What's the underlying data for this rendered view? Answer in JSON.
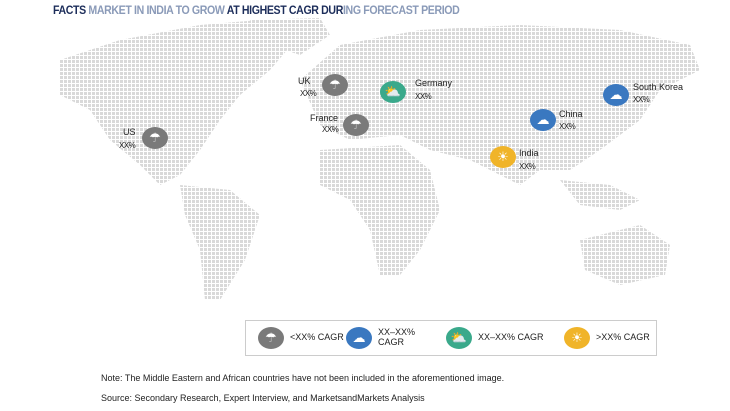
{
  "title": {
    "part1": "FACTS",
    "part2": " MARKET IN INDIA TO GROW ",
    "part3": "AT HIGHEST CAGR DUR",
    "part4": "ING FORECAST PERIOD"
  },
  "countries": [
    {
      "name": "US",
      "value": "XX%",
      "category": "low",
      "icon": "rain-cloud-icon"
    },
    {
      "name": "UK",
      "value": "XX%",
      "category": "low",
      "icon": "rain-cloud-icon"
    },
    {
      "name": "France",
      "value": "XX%",
      "category": "low",
      "icon": "rain-cloud-icon"
    },
    {
      "name": "Germany",
      "value": "XX%",
      "category": "mid-high",
      "icon": "sun-cloud-icon"
    },
    {
      "name": "China",
      "value": "XX%",
      "category": "mid-low",
      "icon": "cloud-icon"
    },
    {
      "name": "India",
      "value": "XX%",
      "category": "high",
      "icon": "sun-icon"
    },
    {
      "name": "South Korea",
      "value": "XX%",
      "category": "mid-low",
      "icon": "cloud-icon"
    }
  ],
  "legend": [
    {
      "label": "<XX% CAGR",
      "color": "#7a7a7a",
      "icon": "rain-cloud-icon"
    },
    {
      "label": "XX–XX% CAGR",
      "color": "#3a78c0",
      "icon": "cloud-icon"
    },
    {
      "label": "XX–XX% CAGR",
      "color": "#3aa98b",
      "icon": "sun-cloud-icon"
    },
    {
      "label": ">XX% CAGR",
      "color": "#f0b429",
      "icon": "sun-icon"
    }
  ],
  "notes": {
    "note": "Note: The Middle Eastern and African countries have not been included in the aforementioned image.",
    "source": "Source: Secondary Research, Expert Interview, and MarketsandMarkets Analysis"
  }
}
